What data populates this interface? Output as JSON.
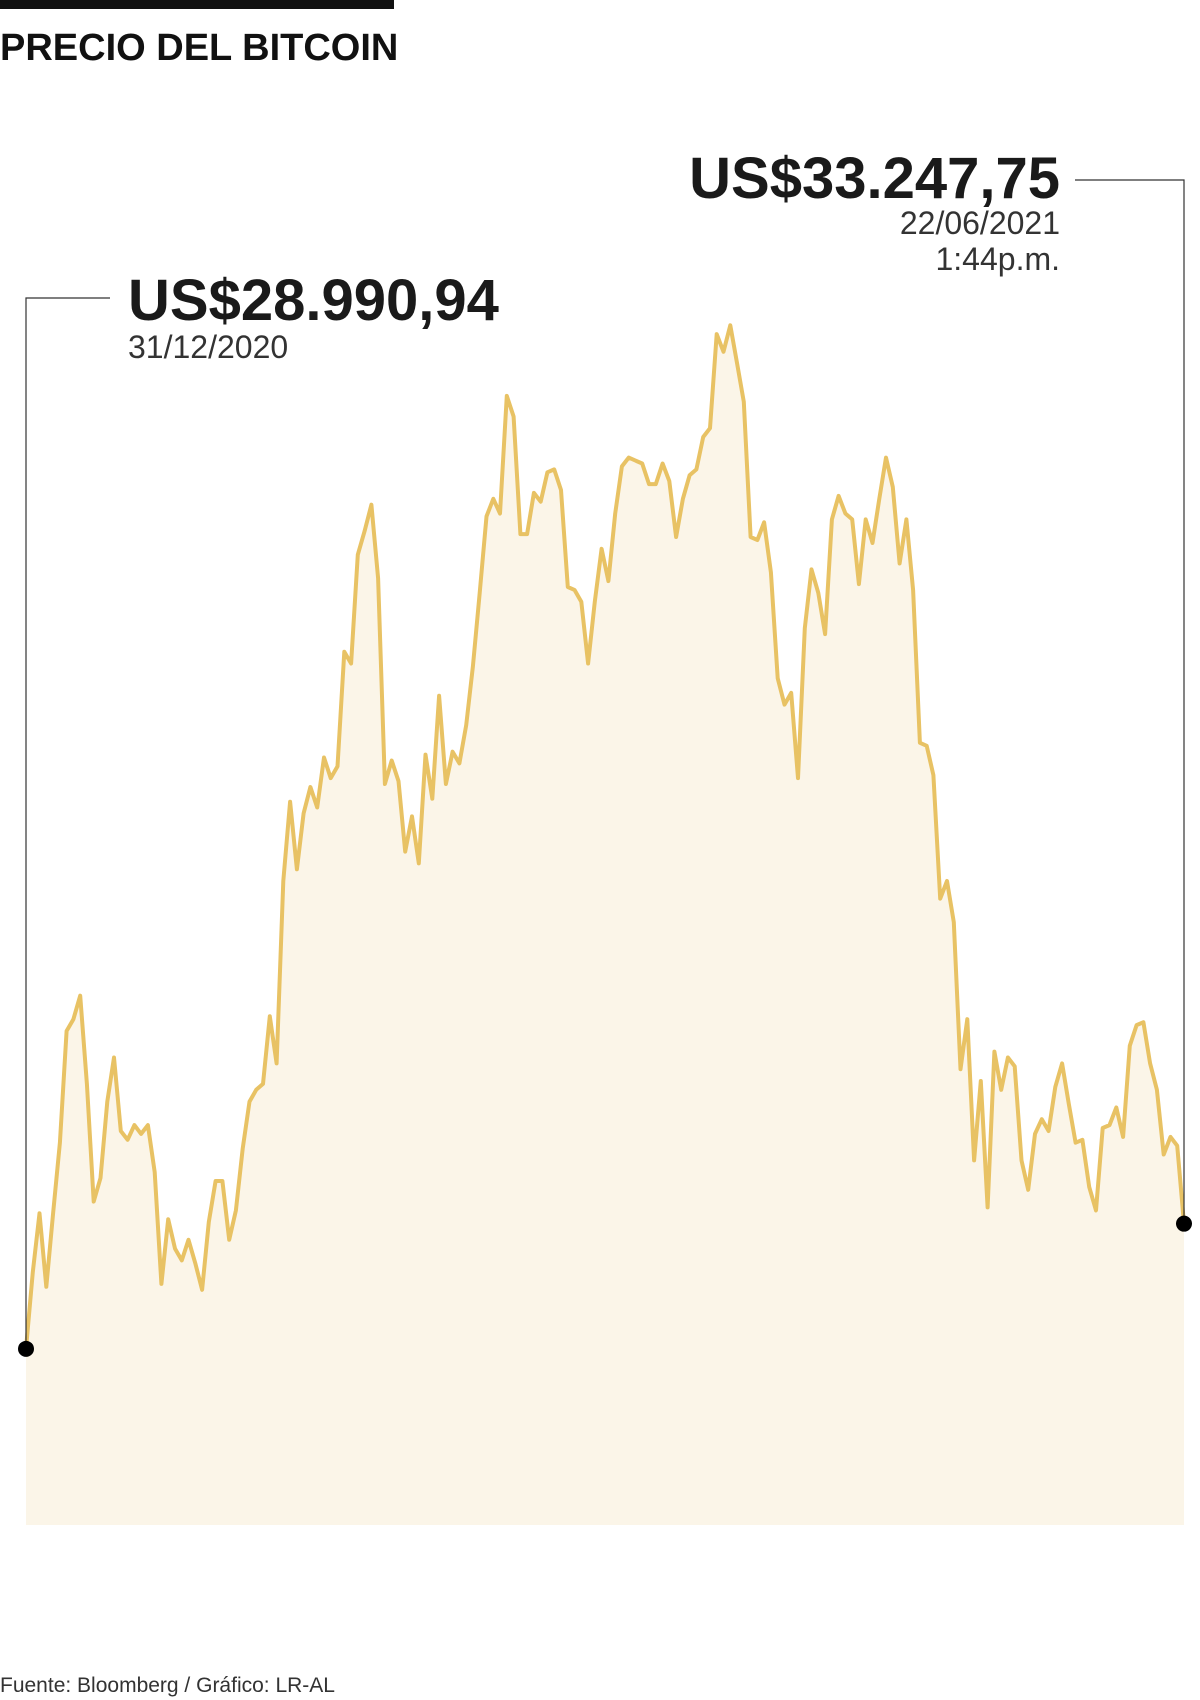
{
  "chart_data": {
    "type": "area",
    "title": "PRECIO DEL BITCOIN",
    "values": [
      28990.94,
      31600,
      33600,
      31100,
      33600,
      36000,
      39800,
      40200,
      41000,
      38000,
      34000,
      34800,
      37400,
      38900,
      36400,
      36100,
      36600,
      36300,
      36600,
      35000,
      31200,
      33400,
      32400,
      32000,
      32700,
      31900,
      31000,
      33300,
      34700,
      34700,
      32700,
      33700,
      35800,
      37400,
      37800,
      38000,
      40300,
      38700,
      44900,
      47600,
      45300,
      47200,
      48100,
      47400,
      49100,
      48400,
      48800,
      52700,
      52300,
      56000,
      56800,
      57700,
      55200,
      48200,
      49000,
      48300,
      45900,
      47100,
      45500,
      49200,
      47700,
      51200,
      48200,
      49300,
      48900,
      50200,
      52200,
      54700,
      57300,
      57900,
      57400,
      61400,
      60700,
      56700,
      56700,
      58100,
      57800,
      58800,
      58900,
      58200,
      54900,
      54800,
      54400,
      52300,
      54400,
      56200,
      55100,
      57400,
      59000,
      59300,
      59200,
      59100,
      58400,
      58400,
      59100,
      58500,
      56600,
      57900,
      58700,
      58900,
      60000,
      60300,
      63500,
      62900,
      63800,
      62500,
      61200,
      56600,
      56500,
      57100,
      55400,
      51800,
      50900,
      51300,
      48400,
      53500,
      55500,
      54700,
      53300,
      57200,
      58000,
      57400,
      57200,
      55000,
      57200,
      56400,
      57900,
      59300,
      58300,
      55700,
      57200,
      54800,
      49600,
      49500,
      48500,
      44300,
      44900,
      43500,
      38500,
      40200,
      35400,
      38100,
      33800,
      39100,
      37800,
      38900,
      38600,
      35400,
      34400,
      36300,
      36800,
      36400,
      37900,
      38700,
      37300,
      36000,
      36100,
      34500,
      33700,
      36500,
      36600,
      37200,
      36200,
      39300,
      40000,
      40100,
      38700,
      37800,
      35600,
      36200,
      35900,
      33247.75
    ],
    "value_labels": [
      "US$28.990,94",
      null,
      null,
      null,
      null,
      null,
      null,
      null,
      null,
      null,
      null,
      null,
      null,
      null,
      null,
      null,
      null,
      null,
      null,
      null,
      null,
      null,
      null,
      null,
      null,
      null,
      null,
      null,
      null,
      null,
      null,
      null,
      null,
      null,
      null,
      null,
      null,
      null,
      null,
      null,
      null,
      null,
      null,
      null,
      null,
      null,
      null,
      null,
      null,
      null,
      null,
      null,
      null,
      null,
      null,
      null,
      null,
      null,
      null,
      null,
      null,
      null,
      null,
      null,
      null,
      null,
      null,
      null,
      null,
      null,
      null,
      null,
      null,
      null,
      null,
      null,
      null,
      null,
      null,
      null,
      null,
      null,
      null,
      null,
      null,
      null,
      null,
      null,
      null,
      null,
      null,
      null,
      null,
      null,
      null,
      null,
      null,
      null,
      null,
      null,
      null,
      null,
      null,
      null,
      null,
      null,
      null,
      null,
      null,
      null,
      null,
      null,
      null,
      null,
      null,
      null,
      null,
      null,
      null,
      null,
      null,
      null,
      null,
      null,
      null,
      null,
      null,
      null,
      null,
      null,
      null,
      null,
      null,
      null,
      null,
      null,
      null,
      null,
      null,
      null,
      null,
      null,
      null,
      null,
      null,
      null,
      null,
      null,
      null,
      null,
      null,
      null,
      null,
      null,
      null,
      null,
      null,
      null,
      null,
      null,
      null,
      null,
      null,
      null,
      null,
      null,
      null,
      null,
      null,
      null,
      null,
      "US$33.247,75"
    ],
    "annotations": [
      {
        "date": "31/12/2020"
      },
      {
        "date": "22/06/2021",
        "time": "1:44p.m."
      }
    ],
    "color": "#e8c264",
    "fill": "#fbf5e8",
    "ylim": [
      23000,
      70000
    ],
    "source": "Fuente: Bloomberg / Gráfico: LR-AL"
  }
}
